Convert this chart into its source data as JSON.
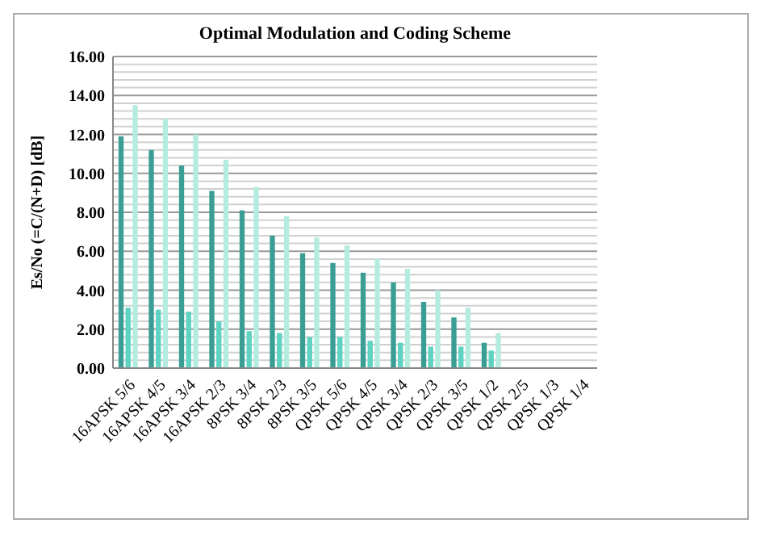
{
  "chart_data": {
    "type": "bar",
    "title": "Optimal Modulation and Coding Scheme",
    "ylabel": "Es/No  (=C/(N+D) [dB]",
    "categories": [
      "16APSK 5/6",
      "16APSK 4/5",
      "16APSK 3/4",
      "16APSK 2/3",
      "8PSK 3/4",
      "8PSK 2/3",
      "8PSK 3/5",
      "QPSK 5/6",
      "QPSK 4/5",
      "QPSK 3/4",
      "QPSK 2/3",
      "QPSK 3/5",
      "QPSK 1/2",
      "QPSK 2/5",
      "QPSK 1/3",
      "QPSK 1/4"
    ],
    "series": [
      {
        "color": "#3a9e95",
        "values": [
          11.9,
          11.2,
          10.4,
          9.1,
          8.1,
          6.8,
          5.9,
          5.4,
          4.9,
          4.4,
          3.4,
          2.6,
          1.3,
          null,
          null,
          null
        ]
      },
      {
        "color": "#5fd3c2",
        "values": [
          3.1,
          3.0,
          2.9,
          2.4,
          1.9,
          1.8,
          1.6,
          1.6,
          1.4,
          1.3,
          1.1,
          1.1,
          0.9,
          null,
          null,
          null
        ]
      },
      {
        "color": "#b5ece0",
        "values": [
          13.5,
          12.8,
          12.0,
          10.7,
          9.3,
          7.8,
          6.7,
          6.3,
          5.6,
          5.1,
          4.0,
          3.1,
          1.8,
          null,
          null,
          null
        ]
      }
    ],
    "ylim": [
      0,
      16
    ],
    "yticks": [
      {
        "value": 0,
        "label": "0.00"
      },
      {
        "value": 0.4,
        "label": null
      },
      {
        "value": 0.8,
        "label": null
      },
      {
        "value": 1.2,
        "label": null
      },
      {
        "value": 1.6,
        "label": null
      },
      {
        "value": 2,
        "label": "2.00"
      },
      {
        "value": 2.4,
        "label": null
      },
      {
        "value": 2.8,
        "label": null
      },
      {
        "value": 3.2,
        "label": null
      },
      {
        "value": 3.6,
        "label": null
      },
      {
        "value": 4,
        "label": "4.00"
      },
      {
        "value": 4.4,
        "label": null
      },
      {
        "value": 4.8,
        "label": null
      },
      {
        "value": 5.2,
        "label": null
      },
      {
        "value": 5.6,
        "label": null
      },
      {
        "value": 6,
        "label": "6.00"
      },
      {
        "value": 6.4,
        "label": null
      },
      {
        "value": 6.8,
        "label": null
      },
      {
        "value": 7.2,
        "label": null
      },
      {
        "value": 7.6,
        "label": null
      },
      {
        "value": 8,
        "label": "8.00"
      },
      {
        "value": 8.4,
        "label": null
      },
      {
        "value": 8.8,
        "label": null
      },
      {
        "value": 9.2,
        "label": null
      },
      {
        "value": 9.6,
        "label": null
      },
      {
        "value": 10,
        "label": "10.00"
      },
      {
        "value": 10.4,
        "label": null
      },
      {
        "value": 10.8,
        "label": null
      },
      {
        "value": 11.2,
        "label": null
      },
      {
        "value": 11.6,
        "label": null
      },
      {
        "value": 12,
        "label": "12.00"
      },
      {
        "value": 12.4,
        "label": null
      },
      {
        "value": 12.8,
        "label": null
      },
      {
        "value": 13.2,
        "label": null
      },
      {
        "value": 13.6,
        "label": null
      },
      {
        "value": 14,
        "label": "14.00"
      },
      {
        "value": 14.4,
        "label": null
      },
      {
        "value": 14.8,
        "label": null
      },
      {
        "value": 15.2,
        "label": null
      },
      {
        "value": 15.6,
        "label": null
      },
      {
        "value": 16,
        "label": "16.00"
      }
    ],
    "grid": "y"
  }
}
